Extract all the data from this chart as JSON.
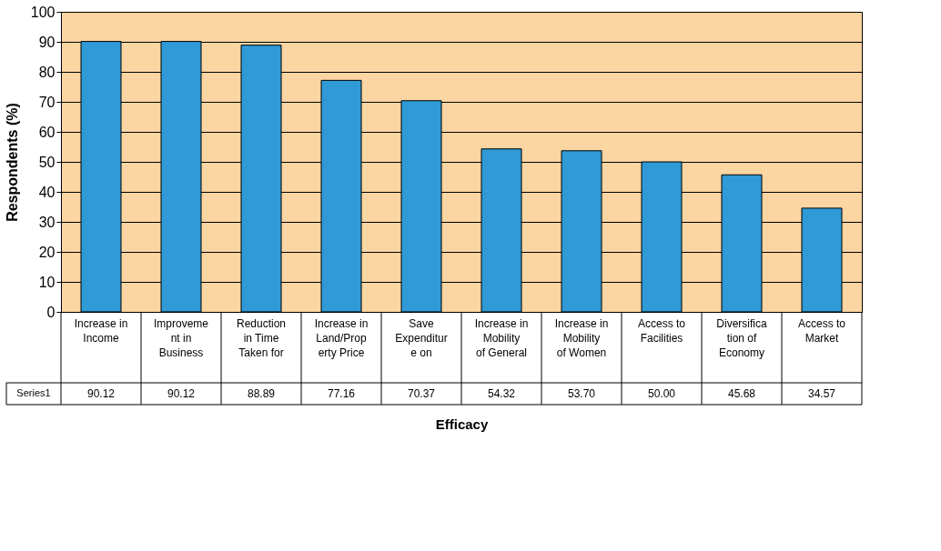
{
  "chart_data": {
    "type": "bar",
    "xlabel": "Efficacy",
    "ylabel": "Respondents (%)",
    "categories": [
      "Increase in\nIncome",
      "Improveme\nnt in\nBusiness",
      "Reduction\nin Time\nTaken for",
      "Increase in\nLand/Prop\nerty Price",
      "Save\nExpenditur\ne on",
      "Increase in\nMobility\nof General",
      "Increase in\nMobility\nof Women",
      "Access to\nFacilities",
      "Diversifica\ntion of\nEconomy",
      "Access to\nMarket"
    ],
    "series": [
      {
        "name": "Series1",
        "color": "#2f9ad6",
        "values": [
          90.12,
          90.12,
          88.89,
          77.16,
          70.37,
          54.32,
          53.7,
          50.0,
          45.68,
          34.57
        ],
        "value_labels": [
          "90.12",
          "90.12",
          "88.89",
          "77.16",
          "70.37",
          "54.32",
          "53.70",
          "50.00",
          "45.68",
          "34.57"
        ]
      }
    ],
    "ylim": [
      0,
      100
    ],
    "yticks": [
      0,
      10,
      20,
      30,
      40,
      50,
      60,
      70,
      80,
      90,
      100
    ],
    "grid": "y",
    "legend": "bottom left"
  }
}
